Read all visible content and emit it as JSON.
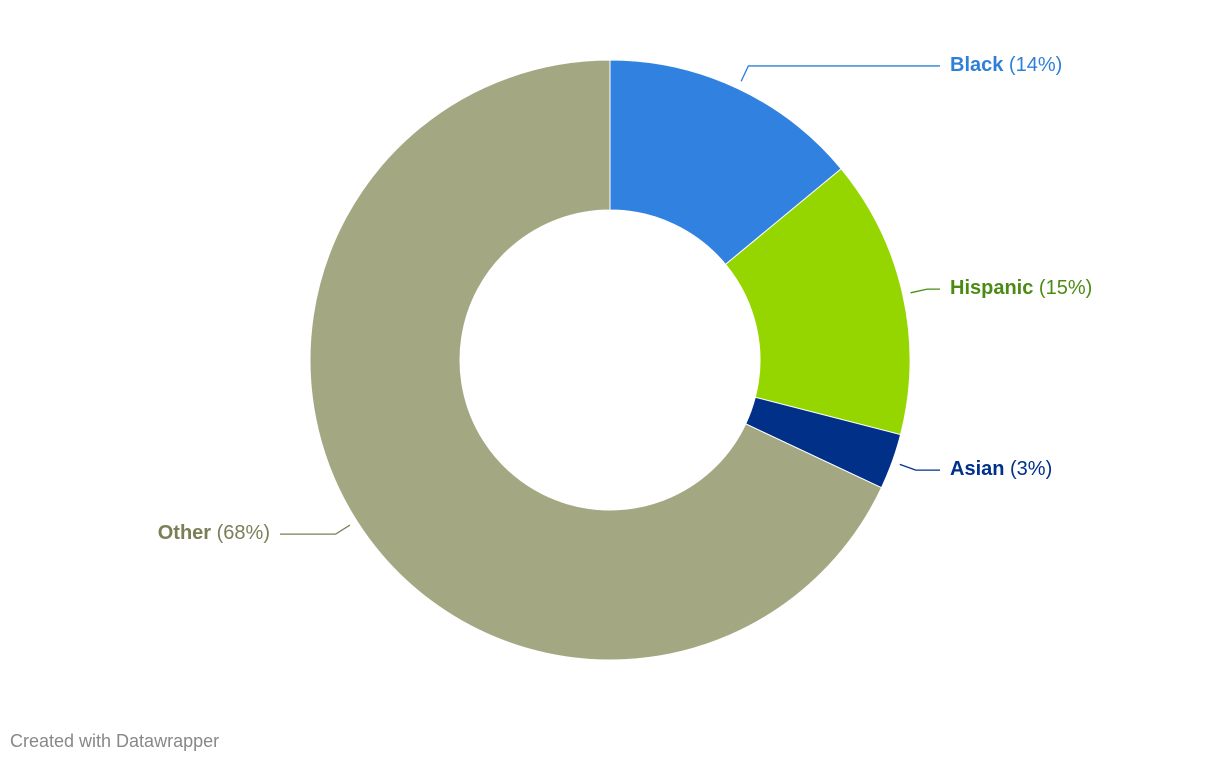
{
  "chart_data": {
    "type": "pie",
    "categories": [
      "Black",
      "Hispanic",
      "Asian",
      "Other"
    ],
    "values": [
      14,
      15,
      3,
      68
    ],
    "value_labels": [
      "(14%)",
      "(15%)",
      "(3%)",
      "(68%)"
    ],
    "colors": [
      "#3182e0",
      "#96d600",
      "#003087",
      "#a3a883"
    ],
    "label_colors": [
      "#2f7fd9",
      "#4b8b14",
      "#00308a",
      "#7b7e57"
    ],
    "footer": "Created with Datawrapper"
  }
}
